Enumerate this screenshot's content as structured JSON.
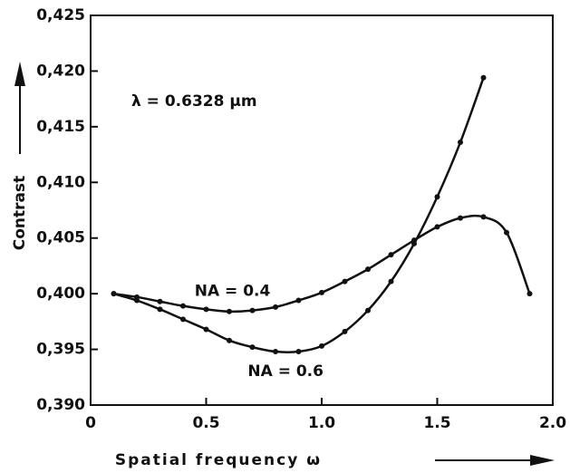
{
  "chart_data": {
    "type": "line",
    "annotation": "λ = 0.6328 μm",
    "xlabel": "Spatial frequency ω",
    "ylabel": "Contrast",
    "xlim": [
      0,
      2.0
    ],
    "xticks": [
      0,
      0.5,
      {
        "value": 1.0,
        "label": "1.0"
      },
      1.5,
      {
        "value": 2.0,
        "label": "2.0"
      }
    ],
    "ylim": [
      0.39,
      0.425
    ],
    "yticks": [
      {
        "value": 0.39,
        "label": "0,390"
      },
      {
        "value": 0.395,
        "label": "0,395"
      },
      {
        "value": 0.4,
        "label": "0,400"
      },
      {
        "value": 0.405,
        "label": "0,405"
      },
      {
        "value": 0.41,
        "label": "0,410"
      },
      {
        "value": 0.415,
        "label": "0,415"
      },
      {
        "value": 0.42,
        "label": "0,420"
      },
      {
        "value": 0.425,
        "label": "0,425"
      }
    ],
    "grid": false,
    "series": [
      {
        "name": "NA = 0.4",
        "color": "#111111",
        "x": [
          0.1,
          0.2,
          0.3,
          0.4,
          0.5,
          0.6,
          0.7,
          0.8,
          0.9,
          1.0,
          1.1,
          1.2,
          1.3,
          1.4,
          1.5,
          1.6,
          1.7,
          1.8,
          1.9
        ],
        "values": [
          0.4,
          0.3997,
          0.3993,
          0.3989,
          0.3986,
          0.3984,
          0.3985,
          0.3988,
          0.3994,
          0.4001,
          0.4011,
          0.4022,
          0.4035,
          0.4048,
          0.406,
          0.4068,
          0.4069,
          0.4055,
          0.4
        ]
      },
      {
        "name": "NA = 0.6",
        "color": "#111111",
        "x": [
          0.1,
          0.2,
          0.3,
          0.4,
          0.5,
          0.6,
          0.7,
          0.8,
          0.9,
          1.0,
          1.1,
          1.2,
          1.3,
          1.4,
          1.5,
          1.6,
          1.7
        ],
        "values": [
          0.4,
          0.3994,
          0.3986,
          0.3977,
          0.3968,
          0.3958,
          0.3952,
          0.3948,
          0.3948,
          0.3953,
          0.3966,
          0.3985,
          0.4011,
          0.4045,
          0.4087,
          0.4136,
          0.4194
        ]
      }
    ]
  }
}
